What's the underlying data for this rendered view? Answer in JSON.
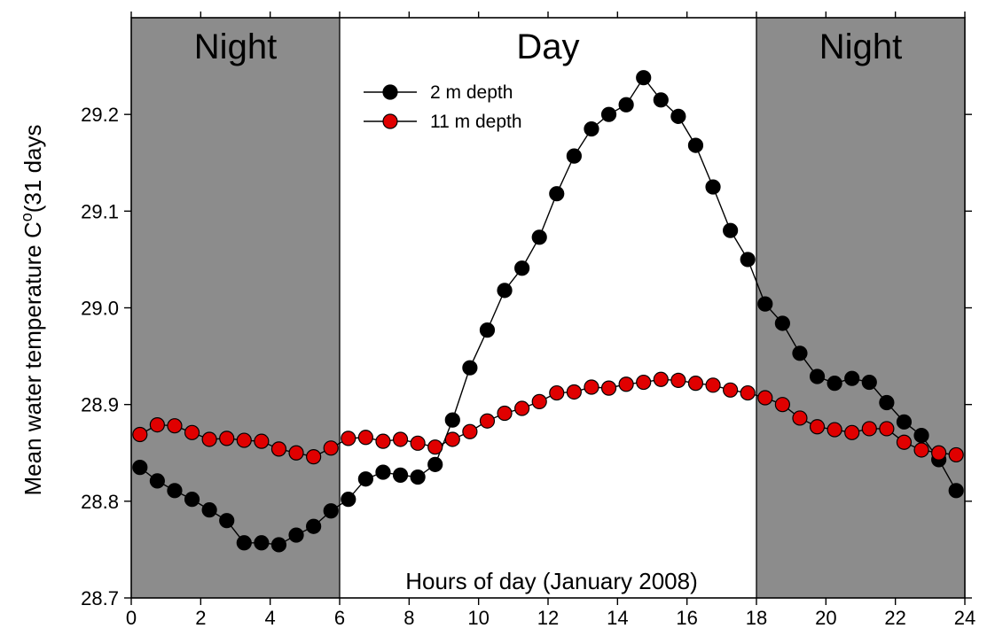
{
  "chart_data": {
    "type": "line",
    "xlabel": "Hours of day (January 2008)",
    "ylabel_main": "Mean water temperature C",
    "ylabel_sup": "o",
    "ylabel_rest": "(31 days",
    "xlim": [
      0,
      24
    ],
    "ylim": [
      28.7,
      29.3
    ],
    "xticks": [
      "0",
      "2",
      "4",
      "6",
      "8",
      "10",
      "12",
      "14",
      "16",
      "18",
      "20",
      "22",
      "24"
    ],
    "yticks": [
      "28.7",
      "28.8",
      "28.9",
      "29.0",
      "29.1",
      "29.2"
    ],
    "ytick_values": [
      28.7,
      28.8,
      28.9,
      29.0,
      29.1,
      29.2
    ],
    "xtick_values": [
      0,
      2,
      4,
      6,
      8,
      10,
      12,
      14,
      16,
      18,
      20,
      22,
      24
    ],
    "regions": [
      {
        "label": "Night",
        "x0": 0,
        "x1": 6,
        "fill": "#8c8c8c"
      },
      {
        "label": "Day",
        "x0": 6,
        "x1": 18,
        "fill": "#ffffff"
      },
      {
        "label": "Night",
        "x0": 18,
        "x1": 24,
        "fill": "#8c8c8c"
      }
    ],
    "legend_placement": "top-center",
    "grid": false,
    "x": [
      0.25,
      0.75,
      1.25,
      1.75,
      2.25,
      2.75,
      3.25,
      3.75,
      4.25,
      4.75,
      5.25,
      5.75,
      6.25,
      6.75,
      7.25,
      7.75,
      8.25,
      8.75,
      9.25,
      9.75,
      10.25,
      10.75,
      11.25,
      11.75,
      12.25,
      12.75,
      13.25,
      13.75,
      14.25,
      14.75,
      15.25,
      15.75,
      16.25,
      16.75,
      17.25,
      17.75,
      18.25,
      18.75,
      19.25,
      19.75,
      20.25,
      20.75,
      21.25,
      21.75,
      22.25,
      22.75,
      23.25,
      23.75
    ],
    "series": [
      {
        "name": "2 m depth",
        "color": "#000000",
        "values": [
          28.835,
          28.821,
          28.811,
          28.802,
          28.791,
          28.78,
          28.757,
          28.757,
          28.755,
          28.765,
          28.774,
          28.79,
          28.802,
          28.823,
          28.83,
          28.827,
          28.825,
          28.838,
          28.884,
          28.938,
          28.977,
          29.018,
          29.041,
          29.073,
          29.118,
          29.157,
          29.185,
          29.2,
          29.21,
          29.238,
          29.215,
          29.198,
          29.168,
          29.125,
          29.08,
          29.05,
          29.004,
          28.984,
          28.953,
          28.929,
          28.922,
          28.927,
          28.923,
          28.902,
          28.882,
          28.868,
          28.843,
          28.811
        ]
      },
      {
        "name": "11 m depth",
        "color": "#e00000",
        "values": [
          28.869,
          28.879,
          28.878,
          28.871,
          28.864,
          28.865,
          28.863,
          28.862,
          28.854,
          28.85,
          28.846,
          28.855,
          28.865,
          28.866,
          28.862,
          28.864,
          28.86,
          28.856,
          28.864,
          28.872,
          28.883,
          28.891,
          28.896,
          28.903,
          28.912,
          28.913,
          28.918,
          28.917,
          28.921,
          28.923,
          28.926,
          28.925,
          28.922,
          28.92,
          28.915,
          28.912,
          28.907,
          28.9,
          28.886,
          28.877,
          28.874,
          28.871,
          28.875,
          28.875,
          28.861,
          28.853,
          28.85,
          28.848
        ]
      }
    ]
  }
}
